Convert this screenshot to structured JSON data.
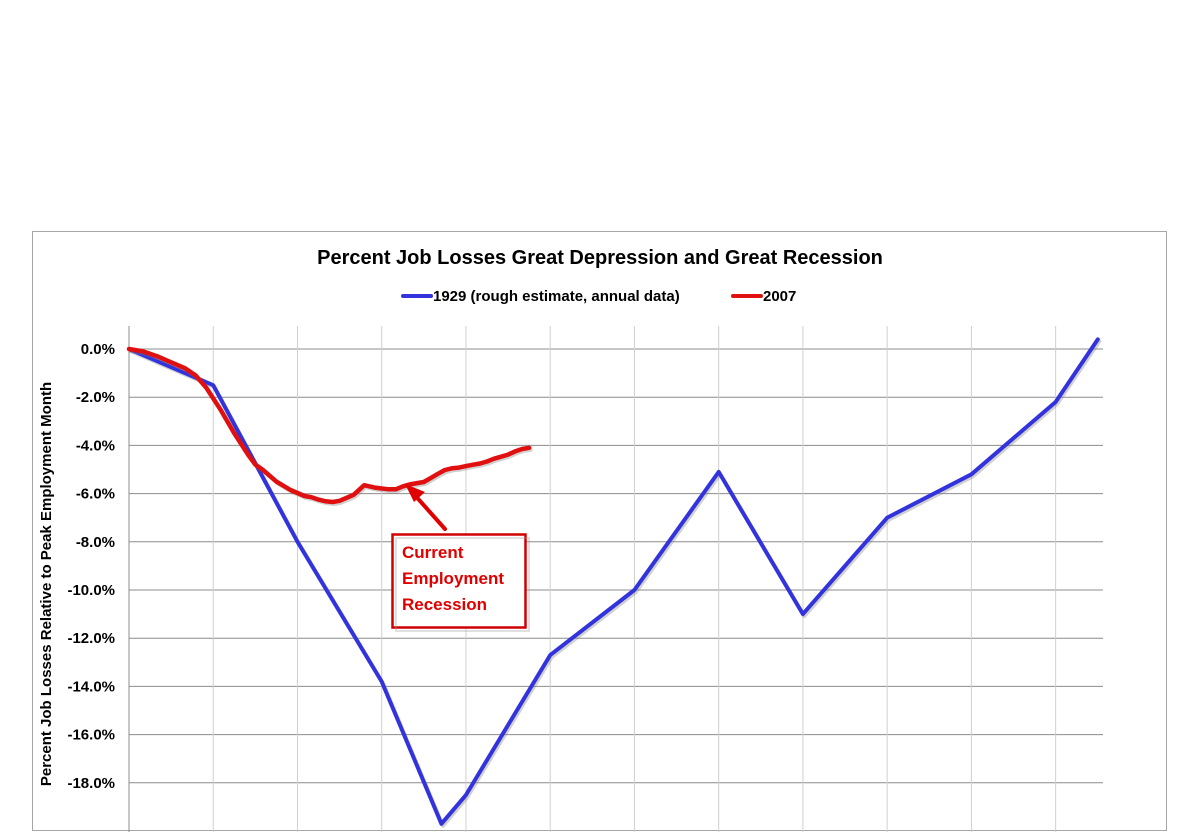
{
  "chart_data": {
    "type": "line",
    "title": "Percent Job Losses Great Depression and Great Recession",
    "ylabel": "Percent Job Losses Relative to Peak Employment Month",
    "xlabel": "",
    "ylim": [
      -20,
      1
    ],
    "y_ticks": [
      "0.0%",
      "-2.0%",
      "-4.0%",
      "-6.0%",
      "-8.0%",
      "-10.0%",
      "-12.0%",
      "-14.0%",
      "-16.0%",
      "-18.0%"
    ],
    "y_tick_values": [
      0,
      -2,
      -4,
      -6,
      -8,
      -10,
      -12,
      -14,
      -16,
      -18
    ],
    "x_unit": "months from peak",
    "x_range": [
      0,
      138
    ],
    "x_gridlines": [
      0,
      12,
      24,
      36,
      48,
      60,
      72,
      84,
      96,
      108,
      120,
      132
    ],
    "grid": true,
    "legend_position": "top",
    "series": [
      {
        "name": "1929 (rough estimate, annual data)",
        "color": "#3333dd",
        "points": [
          [
            0,
            0
          ],
          [
            12,
            -1.5
          ],
          [
            24,
            -8
          ],
          [
            36,
            -13.8
          ],
          [
            44.5,
            -19.7
          ],
          [
            48,
            -18.5
          ],
          [
            60,
            -12.7
          ],
          [
            72,
            -10
          ],
          [
            84,
            -5.1
          ],
          [
            96,
            -11
          ],
          [
            108,
            -7
          ],
          [
            120,
            -5.2
          ],
          [
            132,
            -2.2
          ],
          [
            138,
            0.4
          ]
        ]
      },
      {
        "name": "2007",
        "color": "#e01010",
        "points": [
          [
            0,
            0
          ],
          [
            2,
            -0.1
          ],
          [
            4,
            -0.3
          ],
          [
            6,
            -0.55
          ],
          [
            8,
            -0.8
          ],
          [
            9.5,
            -1.1
          ],
          [
            11,
            -1.6
          ],
          [
            13,
            -2.5
          ],
          [
            15,
            -3.5
          ],
          [
            17,
            -4.4
          ],
          [
            18,
            -4.8
          ],
          [
            19,
            -5.0
          ],
          [
            21,
            -5.5
          ],
          [
            23,
            -5.85
          ],
          [
            25,
            -6.1
          ],
          [
            26,
            -6.15
          ],
          [
            27,
            -6.25
          ],
          [
            28,
            -6.32
          ],
          [
            29,
            -6.35
          ],
          [
            30,
            -6.3
          ],
          [
            32,
            -6.05
          ],
          [
            33.5,
            -5.65
          ],
          [
            35,
            -5.75
          ],
          [
            37,
            -5.82
          ],
          [
            38,
            -5.82
          ],
          [
            39,
            -5.7
          ],
          [
            40,
            -5.62
          ],
          [
            42,
            -5.52
          ],
          [
            43,
            -5.35
          ],
          [
            44,
            -5.18
          ],
          [
            45,
            -5.02
          ],
          [
            46,
            -4.95
          ],
          [
            47,
            -4.92
          ],
          [
            48,
            -4.86
          ],
          [
            49,
            -4.8
          ],
          [
            50,
            -4.75
          ],
          [
            51,
            -4.67
          ],
          [
            52,
            -4.55
          ],
          [
            53,
            -4.47
          ],
          [
            54,
            -4.38
          ],
          [
            55,
            -4.25
          ],
          [
            56,
            -4.15
          ],
          [
            57,
            -4.1
          ]
        ]
      }
    ],
    "annotations": [
      {
        "lines": [
          "Current",
          "Employment",
          "Recession"
        ],
        "color": "#e00000"
      }
    ]
  }
}
